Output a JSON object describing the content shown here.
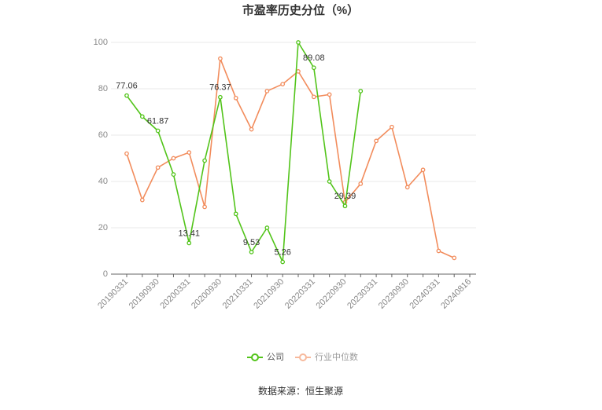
{
  "chart_data": {
    "type": "line",
    "title": "市盈率历史分位（%）",
    "source": "数据来源：恒生聚源",
    "categories": [
      "20190331",
      null,
      "20190930",
      null,
      "20200331",
      null,
      "20200930",
      null,
      "20210331",
      null,
      "20210930",
      null,
      "20220331",
      null,
      "20220930",
      null,
      "20230331",
      null,
      "20230930",
      null,
      "20240331",
      null,
      "20240816"
    ],
    "series": [
      {
        "name": "公司",
        "color": "#52c41a",
        "values": [
          77.06,
          68,
          61.87,
          43,
          13.41,
          49,
          76.37,
          26,
          9.53,
          20,
          5.26,
          100,
          89.08,
          40,
          29.39,
          79,
          null,
          null,
          null,
          null,
          null,
          null,
          null
        ],
        "value_labels": [
          "77.06",
          null,
          "61.87",
          null,
          "13.41",
          null,
          "76.37",
          null,
          "9.53",
          null,
          "5.26",
          null,
          "89.08",
          null,
          "29.39",
          null,
          null,
          null,
          null,
          null,
          null,
          null,
          null
        ]
      },
      {
        "name": "行业中位数",
        "color": "#f28c5c",
        "values": [
          52,
          32,
          46,
          50,
          52.5,
          29,
          93,
          76,
          62.5,
          79,
          82,
          87.5,
          76.5,
          77.5,
          31,
          39,
          57.5,
          63.5,
          37.5,
          45,
          10,
          7,
          null
        ]
      }
    ],
    "ylim": [
      0,
      100
    ],
    "yticks": [
      0,
      20,
      40,
      60,
      80,
      100
    ],
    "grid": true,
    "legend": "bottom"
  }
}
